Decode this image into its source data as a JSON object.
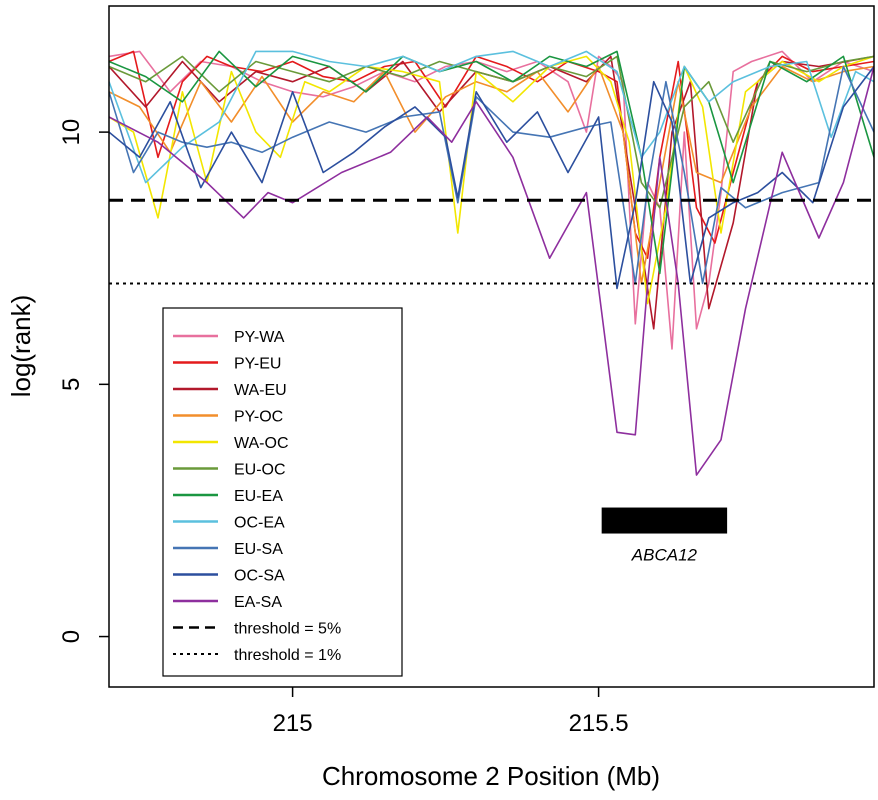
{
  "chart_data": {
    "type": "line",
    "xlabel": "Chromosome 2 Position (Mb)",
    "ylabel": "log(rank)",
    "xlim": [
      214.7,
      215.95
    ],
    "ylim": [
      -1,
      12.5
    ],
    "xticks": [
      215,
      215.5
    ],
    "xtick_labels": [
      "215",
      "215.5"
    ],
    "yticks": [
      0,
      5,
      10
    ],
    "ytick_labels": [
      "0",
      "5",
      "10"
    ],
    "legend_position": "bottom-left",
    "thresholds": [
      {
        "label": "threshold = 5%",
        "value": 8.65,
        "style": "dashed"
      },
      {
        "label": "threshold = 1%",
        "value": 7.0,
        "style": "dotted"
      }
    ],
    "gene": {
      "name": "ABCA12",
      "start": 215.505,
      "end": 215.71,
      "y": 2.3
    },
    "series": [
      {
        "name": "PY-WA",
        "color": "#E8709E",
        "x": [
          214.7,
          214.75,
          214.8,
          214.85,
          214.9,
          214.95,
          215.0,
          215.05,
          215.1,
          215.15,
          215.2,
          215.25,
          215.3,
          215.35,
          215.4,
          215.45,
          215.48,
          215.5,
          215.52,
          215.54,
          215.56,
          215.58,
          215.6,
          215.62,
          215.64,
          215.66,
          215.68,
          215.7,
          215.72,
          215.75,
          215.8,
          215.85,
          215.9,
          215.95
        ],
        "y": [
          11.5,
          11.6,
          10.8,
          11.4,
          11.3,
          11.0,
          10.8,
          10.7,
          10.9,
          11.2,
          11.0,
          11.3,
          11.4,
          11.2,
          11.4,
          11.0,
          10.0,
          11.5,
          11.3,
          11.0,
          6.2,
          9.0,
          8.5,
          5.7,
          10.0,
          6.1,
          7.0,
          8.8,
          11.2,
          11.4,
          11.6,
          11.0,
          11.4,
          11.2
        ]
      },
      {
        "name": "PY-EU",
        "color": "#E41A1C",
        "x": [
          214.7,
          214.74,
          214.78,
          214.82,
          214.86,
          214.9,
          214.95,
          215.0,
          215.05,
          215.1,
          215.15,
          215.2,
          215.25,
          215.3,
          215.35,
          215.4,
          215.45,
          215.5,
          215.53,
          215.56,
          215.58,
          215.6,
          215.63,
          215.66,
          215.69,
          215.72,
          215.76,
          215.8,
          215.85,
          215.9,
          215.95
        ],
        "y": [
          11.4,
          11.6,
          9.5,
          11.0,
          11.5,
          11.3,
          11.2,
          11.4,
          11.1,
          11.0,
          11.3,
          11.4,
          10.5,
          11.5,
          11.3,
          11.0,
          11.4,
          11.2,
          11.0,
          8.0,
          7.5,
          9.5,
          11.4,
          8.5,
          7.8,
          9.2,
          11.0,
          11.5,
          11.2,
          11.3,
          11.4
        ]
      },
      {
        "name": "WA-EU",
        "color": "#B2182B",
        "x": [
          214.7,
          214.76,
          214.82,
          214.88,
          214.94,
          215.0,
          215.06,
          215.12,
          215.18,
          215.24,
          215.3,
          215.36,
          215.42,
          215.48,
          215.52,
          215.56,
          215.59,
          215.62,
          215.65,
          215.68,
          215.72,
          215.76,
          215.8,
          215.86,
          215.95
        ],
        "y": [
          11.3,
          10.5,
          11.4,
          10.6,
          11.2,
          11.0,
          11.3,
          10.8,
          11.4,
          10.4,
          11.2,
          11.0,
          11.3,
          11.0,
          11.5,
          8.5,
          6.1,
          10.0,
          11.0,
          6.5,
          8.2,
          11.0,
          11.4,
          11.3,
          11.5
        ]
      },
      {
        "name": "PY-OC",
        "color": "#F28E2B",
        "x": [
          214.7,
          214.75,
          214.8,
          214.85,
          214.9,
          214.95,
          215.0,
          215.05,
          215.1,
          215.15,
          215.2,
          215.25,
          215.3,
          215.35,
          215.4,
          215.45,
          215.5,
          215.54,
          215.57,
          215.6,
          215.63,
          215.66,
          215.7,
          215.75,
          215.8,
          215.85,
          215.9,
          215.95
        ],
        "y": [
          10.8,
          10.5,
          9.6,
          11.0,
          10.2,
          11.1,
          10.2,
          10.8,
          10.6,
          11.2,
          10.0,
          10.7,
          11.0,
          10.8,
          11.2,
          10.4,
          11.3,
          10.0,
          7.0,
          9.0,
          11.0,
          9.2,
          9.0,
          10.5,
          11.3,
          11.0,
          11.2,
          11.3
        ]
      },
      {
        "name": "WA-OC",
        "color": "#F2E600",
        "x": [
          214.7,
          214.74,
          214.78,
          214.82,
          214.86,
          214.9,
          214.94,
          214.98,
          215.02,
          215.06,
          215.12,
          215.18,
          215.24,
          215.27,
          215.3,
          215.36,
          215.42,
          215.48,
          215.52,
          215.55,
          215.58,
          215.61,
          215.64,
          215.67,
          215.7,
          215.74,
          215.8,
          215.86,
          215.9,
          215.95
        ],
        "y": [
          10.3,
          10.0,
          8.3,
          10.8,
          9.0,
          11.2,
          10.0,
          9.5,
          11.0,
          10.8,
          11.3,
          11.2,
          11.0,
          8.0,
          11.2,
          10.6,
          11.3,
          11.5,
          11.0,
          9.8,
          6.6,
          8.5,
          11.3,
          10.5,
          8.0,
          10.8,
          11.4,
          11.0,
          11.3,
          11.5
        ]
      },
      {
        "name": "EU-OC",
        "color": "#6A9A3A",
        "x": [
          214.7,
          214.76,
          214.82,
          214.88,
          214.94,
          215.0,
          215.06,
          215.12,
          215.18,
          215.24,
          215.3,
          215.36,
          215.42,
          215.48,
          215.53,
          215.57,
          215.6,
          215.64,
          215.68,
          215.72,
          215.78,
          215.84,
          215.9,
          215.95
        ],
        "y": [
          11.3,
          11.0,
          11.5,
          10.8,
          11.4,
          11.2,
          11.0,
          11.3,
          11.1,
          11.4,
          11.2,
          11.0,
          11.3,
          11.1,
          11.5,
          9.0,
          8.5,
          10.5,
          11.0,
          9.8,
          11.4,
          11.2,
          11.4,
          11.5
        ]
      },
      {
        "name": "EU-EA",
        "color": "#1A9641",
        "x": [
          214.7,
          214.76,
          214.82,
          214.88,
          214.94,
          215.0,
          215.06,
          215.12,
          215.18,
          215.24,
          215.3,
          215.36,
          215.42,
          215.48,
          215.53,
          215.57,
          215.6,
          215.64,
          215.68,
          215.72,
          215.78,
          215.84,
          215.9,
          215.95
        ],
        "y": [
          11.4,
          11.1,
          10.6,
          11.6,
          10.9,
          11.5,
          11.3,
          10.8,
          11.5,
          11.2,
          11.4,
          11.0,
          11.5,
          11.3,
          11.6,
          9.5,
          7.2,
          11.3,
          10.6,
          9.0,
          11.4,
          11.0,
          11.5,
          9.5
        ]
      },
      {
        "name": "OC-EA",
        "color": "#5BC0DE",
        "x": [
          214.7,
          214.76,
          214.82,
          214.88,
          214.94,
          215.0,
          215.06,
          215.12,
          215.18,
          215.24,
          215.3,
          215.36,
          215.42,
          215.48,
          215.53,
          215.57,
          215.6,
          215.64,
          215.68,
          215.72,
          215.78,
          215.84,
          215.88,
          215.92,
          215.95
        ],
        "y": [
          11.0,
          9.0,
          9.7,
          10.2,
          11.6,
          11.6,
          11.4,
          11.3,
          11.5,
          11.2,
          11.5,
          11.6,
          11.3,
          11.6,
          11.2,
          9.5,
          10.0,
          11.3,
          10.6,
          11.0,
          11.3,
          11.4,
          9.9,
          11.2,
          11.0
        ]
      },
      {
        "name": "EU-SA",
        "color": "#4575B4",
        "x": [
          214.7,
          214.74,
          214.78,
          214.82,
          214.86,
          214.9,
          214.95,
          215.0,
          215.06,
          215.12,
          215.18,
          215.24,
          215.27,
          215.3,
          215.36,
          215.42,
          215.48,
          215.52,
          215.56,
          215.58,
          215.61,
          215.64,
          215.67,
          215.7,
          215.74,
          215.8,
          215.86,
          215.9,
          215.95
        ],
        "y": [
          10.8,
          9.2,
          10.0,
          9.8,
          9.7,
          9.8,
          9.6,
          9.9,
          10.2,
          10.0,
          10.3,
          10.4,
          8.6,
          10.7,
          10.0,
          9.9,
          10.1,
          10.2,
          7.0,
          8.9,
          11.0,
          9.2,
          7.0,
          8.9,
          8.5,
          8.8,
          9.0,
          11.3,
          10.0
        ]
      },
      {
        "name": "OC-SA",
        "color": "#2C4F9E",
        "x": [
          214.7,
          214.75,
          214.8,
          214.85,
          214.9,
          214.95,
          215.0,
          215.05,
          215.1,
          215.15,
          215.2,
          215.25,
          215.27,
          215.3,
          215.35,
          215.4,
          215.45,
          215.5,
          215.53,
          215.56,
          215.59,
          215.62,
          215.65,
          215.68,
          215.72,
          215.76,
          215.8,
          215.85,
          215.9,
          215.95
        ],
        "y": [
          10.0,
          9.5,
          10.6,
          8.9,
          10.0,
          9.0,
          10.8,
          9.2,
          9.6,
          10.1,
          10.5,
          9.9,
          8.7,
          10.8,
          9.8,
          10.4,
          9.2,
          10.3,
          6.9,
          8.6,
          11.0,
          10.2,
          7.0,
          8.3,
          8.6,
          8.8,
          9.2,
          8.6,
          10.5,
          11.3
        ]
      },
      {
        "name": "EA-SA",
        "color": "#8E2F9E",
        "x": [
          214.7,
          214.78,
          214.86,
          214.92,
          214.96,
          215.0,
          215.08,
          215.16,
          215.22,
          215.26,
          215.3,
          215.36,
          215.42,
          215.48,
          215.53,
          215.56,
          215.58,
          215.6,
          215.63,
          215.66,
          215.7,
          215.74,
          215.8,
          215.86,
          215.9,
          215.95
        ],
        "y": [
          10.3,
          9.8,
          9.0,
          8.3,
          8.8,
          8.6,
          9.2,
          9.6,
          10.3,
          9.8,
          10.6,
          9.5,
          7.5,
          8.8,
          4.05,
          4.0,
          7.0,
          9.5,
          7.0,
          3.2,
          3.9,
          6.5,
          9.6,
          7.9,
          9.0,
          11.3
        ]
      }
    ]
  }
}
